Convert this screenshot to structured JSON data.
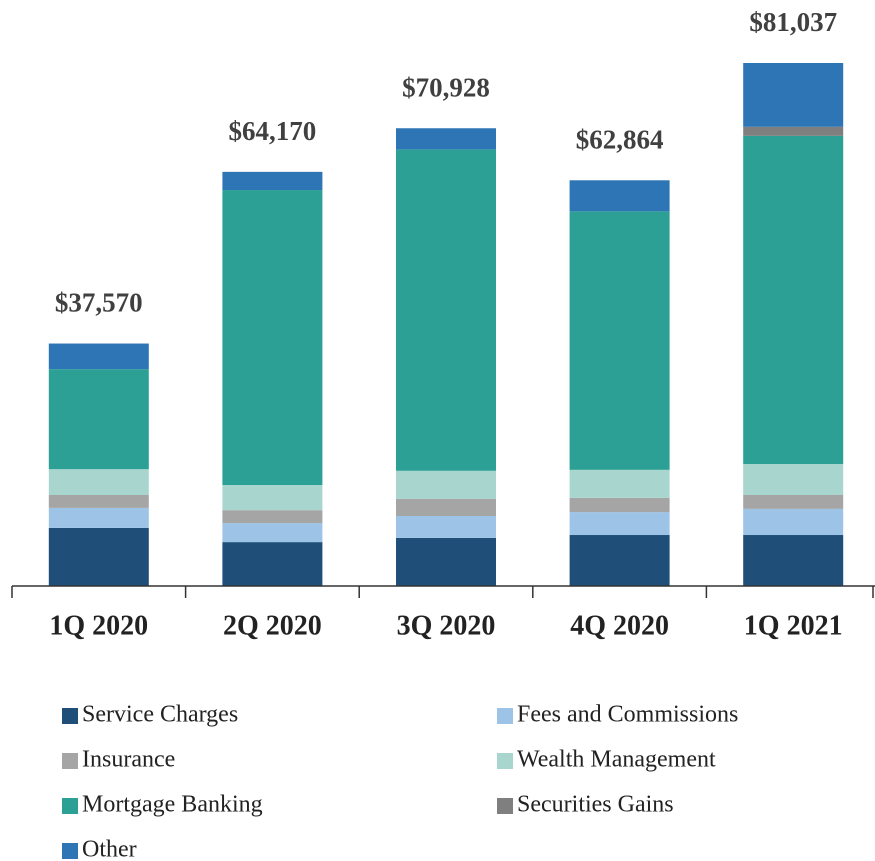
{
  "chart_data": {
    "type": "stacked_bar",
    "categories": [
      "1Q 2020",
      "2Q 2020",
      "3Q 2020",
      "4Q 2020",
      "1Q 2021"
    ],
    "series": [
      {
        "name": "Service Charges",
        "color": "#1f4e79",
        "values": [
          9000,
          6800,
          7450,
          7900,
          7900
        ]
      },
      {
        "name": "Fees and Commissions",
        "color": "#9dc3e6",
        "values": [
          3100,
          2950,
          3400,
          3550,
          4050
        ]
      },
      {
        "name": "Insurance",
        "color": "#a5a5a5",
        "values": [
          2000,
          2000,
          2650,
          2200,
          2150
        ]
      },
      {
        "name": "Wealth Management",
        "color": "#a9d5cf",
        "values": [
          4000,
          3900,
          4350,
          4350,
          4800
        ]
      },
      {
        "name": "Mortgage Banking",
        "color": "#2ca095",
        "values": [
          15500,
          45700,
          49800,
          40050,
          50850
        ]
      },
      {
        "name": "Securities Gains",
        "color": "#7f7f7f",
        "values": [
          0,
          0,
          0,
          0,
          1400
        ]
      },
      {
        "name": "Other",
        "color": "#2e75b6",
        "values": [
          3970,
          2820,
          3278,
          4814,
          9887
        ]
      }
    ],
    "totals": [
      37570,
      64170,
      70928,
      62864,
      81037
    ],
    "total_labels": [
      "$37,570",
      "$64,170",
      "$70,928",
      "$62,864",
      "$81,037"
    ]
  }
}
